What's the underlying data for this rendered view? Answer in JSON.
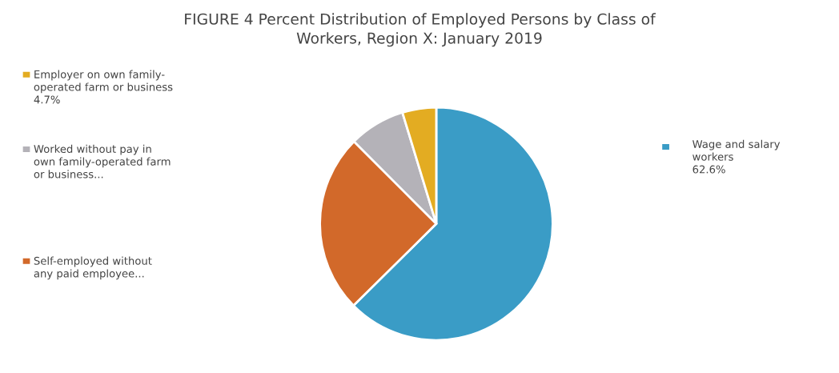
{
  "chart_data": {
    "type": "pie",
    "title": "FIGURE 4 Percent Distribution of Employed Persons by Class of\nWorkers, Region X: January 2019",
    "categories": [
      "Wage and salary\nworkers",
      "Self-employed without\nany paid employee...",
      "Worked without pay in\nown family-operated farm\nor business...",
      "Employer on own family-\noperated farm or business"
    ],
    "values": [
      62.6,
      24.9,
      7.8,
      4.7
    ],
    "value_labels": [
      "62.6%",
      null,
      null,
      "4.7%"
    ],
    "colors": [
      "#3a9cc6",
      "#d2692a",
      "#b4b2b8",
      "#e3ac22"
    ],
    "legend": "left"
  }
}
